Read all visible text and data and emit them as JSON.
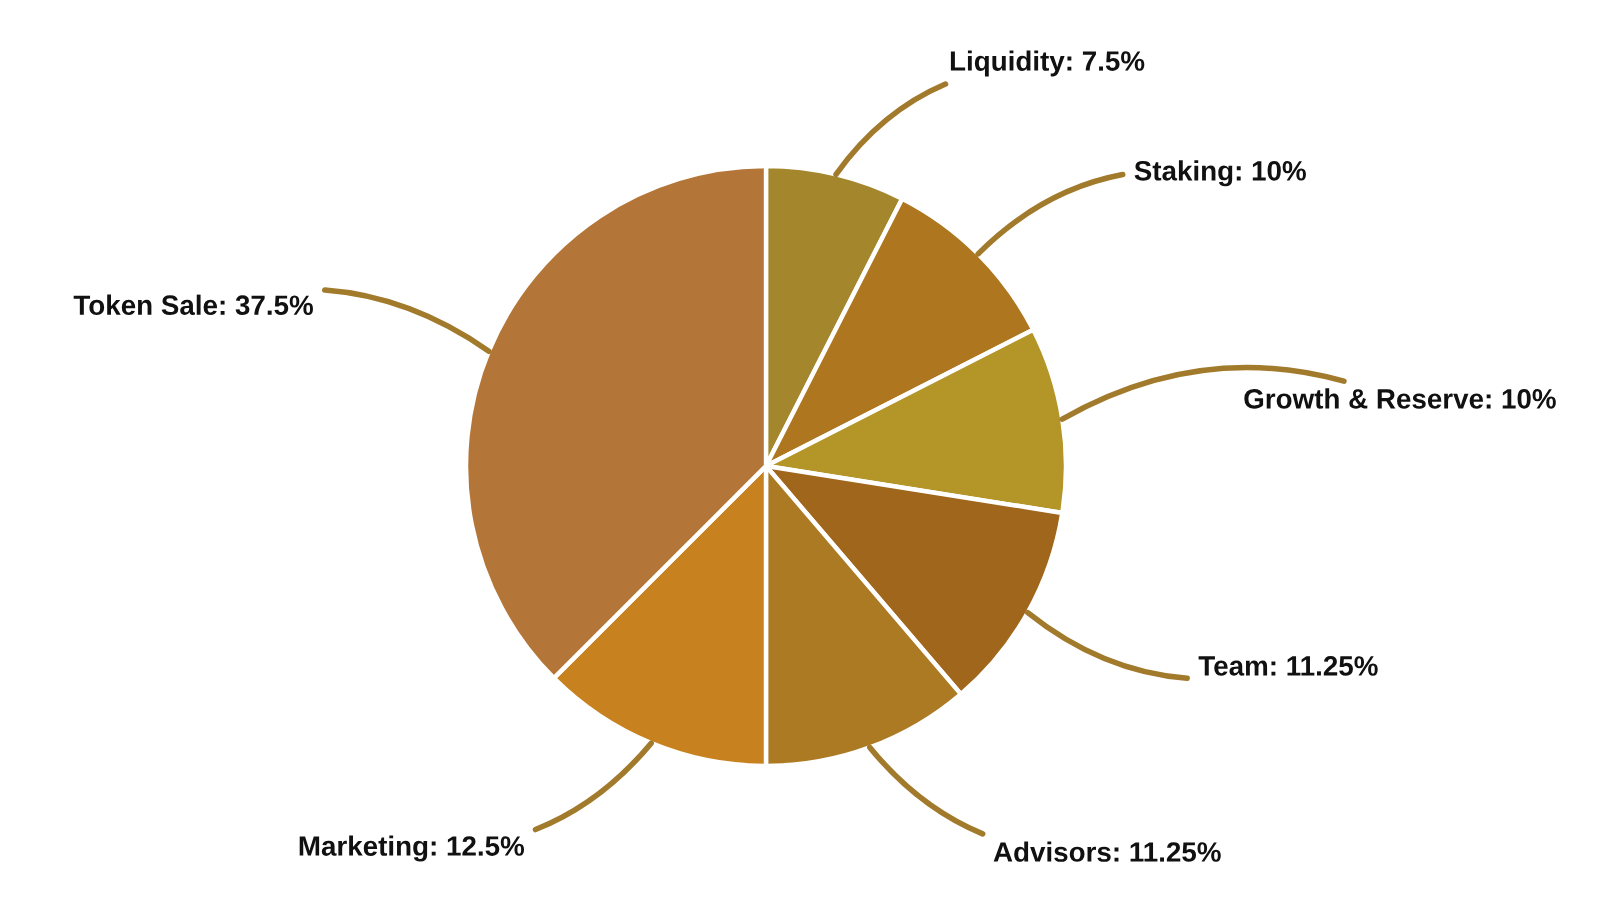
{
  "chart_data": {
    "type": "pie",
    "categories": [
      "Liquidity",
      "Staking",
      "Growth & Reserve",
      "Team",
      "Advisors",
      "Marketing",
      "Token Sale"
    ],
    "values": [
      7.5,
      10,
      10,
      11.25,
      11.25,
      12.5,
      37.5
    ],
    "value_labels": [
      "7.5%",
      "10%",
      "10%",
      "11.25%",
      "11.25%",
      "12.5%",
      "37.5%"
    ],
    "colors": [
      "#a4862c",
      "#ad761f",
      "#b39528",
      "#a0661b",
      "#ad7a24",
      "#c7821f",
      "#b47538"
    ],
    "legend": false
  }
}
